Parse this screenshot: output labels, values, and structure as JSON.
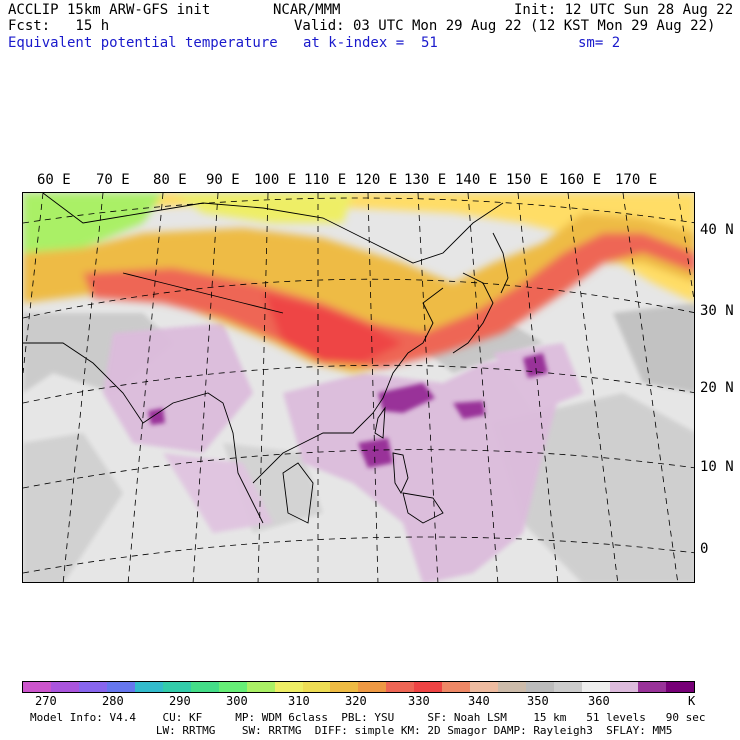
{
  "header": {
    "left1": "ACCLIP 15km ARW-GFS init",
    "left2": "Fcst:   15 h",
    "left3": "Equivalent potential temperature",
    "center1": "NCAR/MMM",
    "right1": "Init: 12 UTC Sun 28 Aug 22",
    "right2": "Valid: 03 UTC Mon 29 Aug 22 (12 KST Mon 29 Aug 22)",
    "mid3": "at k-index =  51",
    "right3": "sm= 2"
  },
  "map": {
    "lon_labels": [
      "60 E",
      "70 E",
      "80 E",
      "90 E",
      "100 E",
      "110 E",
      "120 E",
      "130 E",
      "140 E",
      "150 E",
      "160 E",
      "170 E"
    ],
    "lat_labels": [
      "40 N",
      "30 N",
      "20 N",
      "10 N",
      "0"
    ]
  },
  "colorbar": {
    "colors": [
      "#cc55cc",
      "#aa55dd",
      "#8866ee",
      "#6677ee",
      "#33bbcc",
      "#33ccaa",
      "#44dd88",
      "#66ee77",
      "#aaf066",
      "#eeee66",
      "#eedd55",
      "#eebb44",
      "#ee9944",
      "#ee6655",
      "#ee4444",
      "#ee8866",
      "#eebba0",
      "#ccbbaa",
      "#bbbbbb",
      "#cccccc",
      "#eeeeee",
      "#ddbbdd",
      "#993399",
      "#770077"
    ],
    "labels": [
      "270",
      "280",
      "290",
      "300",
      "310",
      "320",
      "330",
      "340",
      "350",
      "360"
    ],
    "unit": "K"
  },
  "footer": {
    "line1": "Model Info: V4.4    CU: KF     MP: WDM 6class  PBL: YSU     SF: Noah LSM    15 km   51 levels   90 sec",
    "line2": "                   LW: RRTMG    SW: RRTMG  DIFF: simple KM: 2D Smagor DAMP: Rayleigh3  SFLAY: MM5"
  }
}
